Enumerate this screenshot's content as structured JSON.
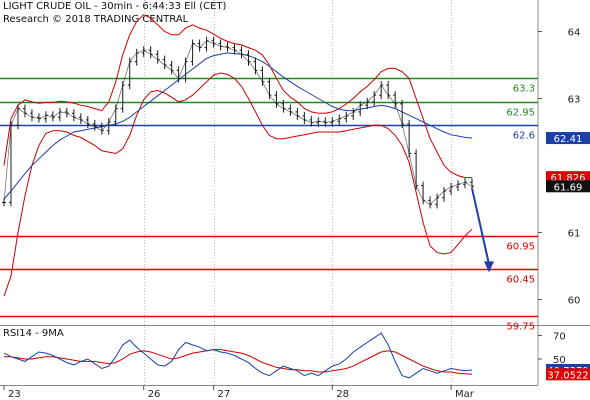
{
  "header": {
    "line1": "LIGHT CRUDE OIL - 30min - 6:44:33 Ell (CET)",
    "line2": "Research © 2018 TRADING CENTRAL"
  },
  "rsi_panel": {
    "title": "RSI14 - 9MA"
  },
  "colors": {
    "price": "#1a1a1a",
    "bollinger": "#cc0000",
    "ma": "#1c3fa8",
    "support": "#dd0000",
    "resistance_green": "#1a8c1a",
    "pivot_blue": "#1c3fa8",
    "arrow": "#1c3fa8",
    "rsi": "#1c3fa8",
    "rsi_ma": "#cc0000",
    "grid": "#bbbbbb"
  },
  "chart_data": [
    {
      "type": "line",
      "title": "LIGHT CRUDE OIL - 30min",
      "ylim": [
        59.62,
        64.47
      ],
      "y_ticks": [
        64,
        63,
        61,
        60
      ],
      "x_tick_labels": [
        "23",
        "26",
        "27",
        "28",
        "Mar"
      ],
      "levels": [
        {
          "label": "63.3",
          "value": 63.3,
          "color": "#1a8c1a"
        },
        {
          "label": "62.95",
          "value": 62.95,
          "color": "#1a8c1a"
        },
        {
          "label": "62.6",
          "value": 62.6,
          "color": "#1c3fa8"
        },
        {
          "label": "60.95",
          "value": 60.95,
          "color": "#dd0000"
        },
        {
          "label": "60.45",
          "value": 60.45,
          "color": "#dd0000"
        },
        {
          "label": "59.75",
          "value": 59.75,
          "color": "#dd0000"
        }
      ],
      "price_badges": [
        {
          "label": "62.41",
          "value": 62.41,
          "bg": "#1c3fa8",
          "fg": "#ffffff"
        },
        {
          "label": "61.826",
          "value": 61.826,
          "bg": "#dd0000",
          "fg": "#ffffff"
        },
        {
          "label": "61.69",
          "value": 61.69,
          "bg": "#111111",
          "fg": "#ffffff"
        }
      ],
      "series": [
        {
          "name": "Price",
          "values": [
            61.45,
            62.6,
            62.85,
            62.78,
            62.72,
            62.7,
            62.75,
            62.72,
            62.8,
            62.78,
            62.72,
            62.68,
            62.62,
            62.58,
            62.52,
            62.65,
            62.85,
            63.2,
            63.55,
            63.68,
            63.72,
            63.66,
            63.58,
            63.5,
            63.42,
            63.3,
            63.55,
            63.82,
            63.76,
            63.86,
            63.82,
            63.78,
            63.76,
            63.72,
            63.66,
            63.55,
            63.42,
            63.25,
            63.05,
            62.92,
            62.85,
            62.8,
            62.74,
            62.68,
            62.64,
            62.66,
            62.64,
            62.66,
            62.7,
            62.74,
            62.8,
            62.9,
            62.95,
            63.05,
            63.2,
            63.05,
            62.92,
            62.62,
            62.18,
            61.7,
            61.48,
            61.42,
            61.52,
            61.62,
            61.68,
            61.72,
            61.75,
            61.69
          ]
        },
        {
          "name": "Bollinger Upper",
          "values": [
            62.0,
            62.7,
            62.9,
            62.98,
            62.95,
            62.93,
            62.94,
            62.94,
            62.96,
            62.95,
            62.93,
            62.9,
            62.88,
            62.85,
            62.82,
            62.95,
            63.25,
            63.65,
            63.95,
            64.15,
            64.25,
            64.2,
            64.1,
            64.0,
            63.95,
            63.95,
            64.05,
            64.1,
            64.05,
            64.02,
            63.96,
            63.9,
            63.85,
            63.82,
            63.8,
            63.76,
            63.72,
            63.65,
            63.5,
            63.3,
            63.12,
            63.02,
            62.95,
            62.85,
            62.8,
            62.78,
            62.78,
            62.8,
            62.85,
            62.92,
            63.0,
            63.1,
            63.18,
            63.28,
            63.4,
            63.45,
            63.45,
            63.4,
            63.3,
            63.0,
            62.7,
            62.4,
            62.2,
            62.0,
            61.9,
            61.85,
            61.82,
            61.82
          ]
        },
        {
          "name": "Bollinger Lower",
          "values": [
            60.05,
            60.35,
            61.0,
            61.55,
            62.0,
            62.3,
            62.48,
            62.52,
            62.52,
            62.5,
            62.45,
            62.42,
            62.36,
            62.3,
            62.22,
            62.2,
            62.18,
            62.25,
            62.45,
            62.75,
            62.98,
            63.1,
            63.12,
            63.08,
            63.02,
            62.95,
            62.98,
            63.05,
            63.15,
            63.25,
            63.35,
            63.38,
            63.36,
            63.3,
            63.18,
            63.0,
            62.8,
            62.6,
            62.45,
            62.4,
            62.4,
            62.42,
            62.44,
            62.46,
            62.48,
            62.5,
            62.5,
            62.5,
            62.5,
            62.52,
            62.54,
            62.56,
            62.58,
            62.6,
            62.6,
            62.55,
            62.45,
            62.3,
            62.05,
            61.6,
            61.15,
            60.8,
            60.7,
            60.68,
            60.7,
            60.82,
            60.95,
            61.05
          ]
        },
        {
          "name": "Moving Average",
          "values": [
            61.5,
            61.62,
            61.75,
            61.88,
            62.0,
            62.1,
            62.2,
            62.3,
            62.38,
            62.44,
            62.5,
            62.52,
            62.54,
            62.56,
            62.58,
            62.6,
            62.62,
            62.66,
            62.72,
            62.8,
            62.88,
            62.96,
            63.04,
            63.12,
            63.2,
            63.28,
            63.36,
            63.44,
            63.52,
            63.6,
            63.64,
            63.66,
            63.68,
            63.67,
            63.66,
            63.64,
            63.6,
            63.55,
            63.48,
            63.4,
            63.32,
            63.25,
            63.18,
            63.12,
            63.06,
            63.0,
            62.94,
            62.88,
            62.84,
            62.82,
            62.82,
            62.84,
            62.86,
            62.88,
            62.9,
            62.88,
            62.85,
            62.8,
            62.75,
            62.7,
            62.65,
            62.6,
            62.55,
            62.5,
            62.46,
            62.44,
            62.42,
            62.41
          ]
        }
      ]
    },
    {
      "type": "line",
      "title": "RSI14 - 9MA",
      "ylim": [
        28,
        78
      ],
      "y_ticks": [
        70,
        50
      ],
      "badges": [
        {
          "label": "40.7379",
          "value": 40.7379,
          "bg": "#1c3fa8",
          "fg": "#ffffff"
        },
        {
          "label": "37.0522",
          "value": 37.0522,
          "bg": "#dd0000",
          "fg": "#ffffff"
        }
      ],
      "series": [
        {
          "name": "RSI14",
          "values": [
            55,
            52,
            50,
            48,
            52,
            56,
            55,
            53,
            50,
            47,
            45,
            48,
            50,
            46,
            42,
            44,
            52,
            62,
            66,
            60,
            55,
            50,
            45,
            44,
            48,
            58,
            64,
            62,
            60,
            57,
            58,
            56,
            55,
            53,
            50,
            47,
            42,
            38,
            36,
            40,
            44,
            42,
            40,
            36,
            38,
            36,
            40,
            44,
            46,
            50,
            56,
            60,
            64,
            68,
            72,
            62,
            48,
            36,
            34,
            38,
            42,
            40,
            38,
            40,
            42,
            41,
            40,
            40.7
          ]
        },
        {
          "name": "RSI MA9",
          "values": [
            52,
            52,
            51,
            50,
            50,
            51,
            52,
            52,
            51,
            50,
            49,
            48,
            48,
            48,
            47,
            46,
            47,
            50,
            54,
            56,
            57,
            56,
            54,
            52,
            50,
            51,
            53,
            55,
            56,
            57,
            58,
            58,
            57,
            56,
            55,
            53,
            50,
            47,
            45,
            43,
            42,
            41,
            41,
            40,
            40,
            39,
            39,
            40,
            41,
            42,
            44,
            47,
            50,
            53,
            56,
            57,
            56,
            53,
            50,
            47,
            44,
            42,
            40,
            39,
            39,
            38,
            37.5,
            37.05
          ]
        }
      ]
    }
  ]
}
